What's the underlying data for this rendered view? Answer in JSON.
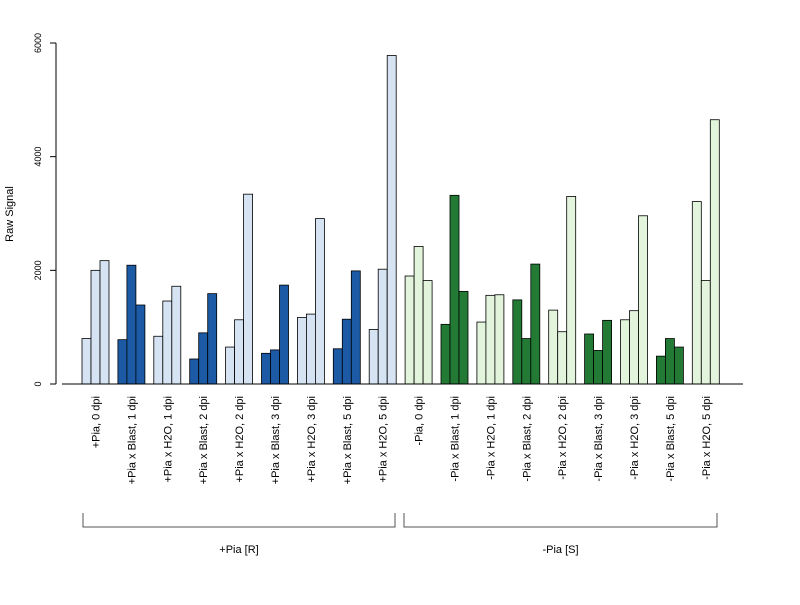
{
  "chart_data": {
    "type": "bar",
    "ylabel": "Raw Signal",
    "ylim": [
      0,
      6000
    ],
    "yticks": [
      0,
      2000,
      4000,
      6000
    ],
    "grid": false,
    "colors": {
      "R_light": "#d5e3f3",
      "R_dark": "#1c5aa6",
      "S_light": "#e3f4dc",
      "S_dark": "#237a35"
    },
    "groups_brackets": [
      {
        "label": "+Pia [R]"
      },
      {
        "label": "-Pia [S]"
      }
    ],
    "categories": [
      {
        "label": "+Pia, 0 dpi",
        "values": [
          800,
          2000,
          2170
        ],
        "color": "R_light"
      },
      {
        "label": "+Pia x Blast, 1 dpi",
        "values": [
          780,
          2090,
          1390
        ],
        "color": "R_dark"
      },
      {
        "label": "+Pia x H2O, 1 dpi",
        "values": [
          840,
          1460,
          1720
        ],
        "color": "R_light"
      },
      {
        "label": "+Pia x Blast, 2 dpi",
        "values": [
          440,
          900,
          1590
        ],
        "color": "R_dark"
      },
      {
        "label": "+Pia x H2O, 2 dpi",
        "values": [
          650,
          1130,
          3340
        ],
        "color": "R_light"
      },
      {
        "label": "+Pia x Blast, 3 dpi",
        "values": [
          540,
          600,
          1740
        ],
        "color": "R_dark"
      },
      {
        "label": "+Pia x H2O, 3 dpi",
        "values": [
          1170,
          1230,
          2910
        ],
        "color": "R_light"
      },
      {
        "label": "+Pia x Blast, 5 dpi",
        "values": [
          620,
          1140,
          1990
        ],
        "color": "R_dark"
      },
      {
        "label": "+Pia x H2O, 5 dpi",
        "values": [
          960,
          2020,
          5780
        ],
        "color": "R_light"
      },
      {
        "label": "-Pia, 0 dpi",
        "values": [
          1900,
          2420,
          1820
        ],
        "color": "S_light"
      },
      {
        "label": "-Pia x Blast, 1 dpi",
        "values": [
          1050,
          3320,
          1630
        ],
        "color": "S_dark"
      },
      {
        "label": "-Pia x H2O, 1 dpi",
        "values": [
          1090,
          1560,
          1570
        ],
        "color": "S_light"
      },
      {
        "label": "-Pia x Blast, 2 dpi",
        "values": [
          1480,
          800,
          2110
        ],
        "color": "S_dark"
      },
      {
        "label": "-Pia x H2O, 2 dpi",
        "values": [
          1300,
          920,
          3300
        ],
        "color": "S_light"
      },
      {
        "label": "-Pia x Blast, 3 dpi",
        "values": [
          880,
          590,
          1120
        ],
        "color": "S_dark"
      },
      {
        "label": "-Pia x H2O, 3 dpi",
        "values": [
          1130,
          1290,
          2960
        ],
        "color": "S_light"
      },
      {
        "label": "-Pia x Blast, 5 dpi",
        "values": [
          490,
          800,
          650
        ],
        "color": "S_dark"
      },
      {
        "label": "-Pia x H2O, 5 dpi",
        "values": [
          3210,
          1820,
          4650
        ],
        "color": "S_light"
      }
    ]
  }
}
